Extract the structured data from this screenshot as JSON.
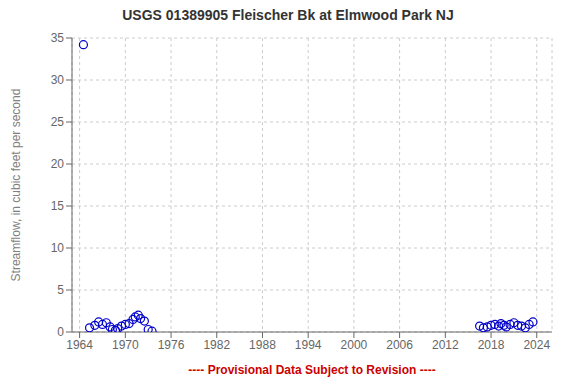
{
  "chart_data": {
    "type": "scatter",
    "title": "USGS 01389905 Fleischer Bk at Elmwood Park NJ",
    "ylabel": "Streamflow, in cubic feet per second",
    "xlabel": "---- Provisional Data Subject to Revision ----",
    "x": [
      1964.5,
      1965.3,
      1966.0,
      1966.5,
      1967.0,
      1967.5,
      1968.0,
      1968.3,
      1968.7,
      1969.0,
      1969.5,
      1970.0,
      1970.5,
      1971.0,
      1971.3,
      1971.7,
      1972.0,
      1972.5,
      1973.0,
      1973.5,
      2016.5,
      2017.0,
      2017.5,
      2018.0,
      2018.5,
      2019.0,
      2019.3,
      2019.7,
      2020.0,
      2020.5,
      2021.0,
      2021.5,
      2022.0,
      2022.5,
      2023.0,
      2023.5
    ],
    "values": [
      34.2,
      0.5,
      0.8,
      1.2,
      0.9,
      1.1,
      0.6,
      0.3,
      0.2,
      0.4,
      0.7,
      0.9,
      1.0,
      1.5,
      1.8,
      2.0,
      1.6,
      1.3,
      0.3,
      0.1,
      0.7,
      0.5,
      0.6,
      0.8,
      0.9,
      0.7,
      1.0,
      0.8,
      0.6,
      0.9,
      1.1,
      0.8,
      0.7,
      0.5,
      0.9,
      1.2
    ],
    "color": "#0000cc",
    "marker": "circle",
    "xlim": [
      1963,
      2026
    ],
    "xticks": [
      1964,
      1970,
      1976,
      1982,
      1988,
      1994,
      2000,
      2006,
      2012,
      2018,
      2024
    ],
    "ylim": [
      0,
      35
    ],
    "yticks": [
      0,
      5,
      10,
      15,
      20,
      25,
      30,
      35
    ],
    "grid": true
  }
}
